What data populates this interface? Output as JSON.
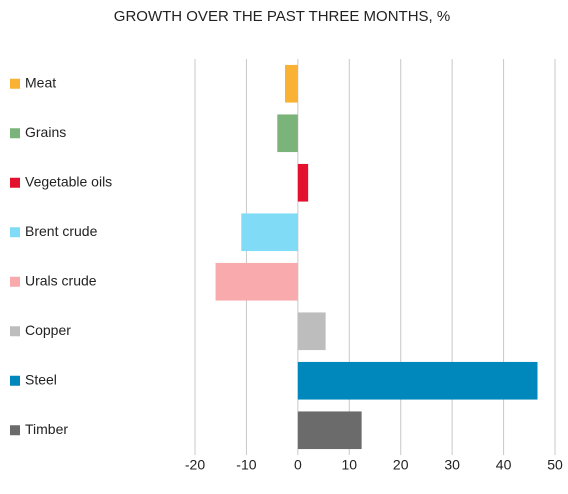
{
  "chart_data": {
    "type": "bar",
    "orientation": "horizontal",
    "title": "GROWTH OVER THE PAST THREE MONTHS, %",
    "categories": [
      "Meat",
      "Grains",
      "Vegetable oils",
      "Brent crude",
      "Urals crude",
      "Copper",
      "Steel",
      "Timber"
    ],
    "values": [
      -2.5,
      -4,
      2,
      -11,
      -16,
      5.4,
      46.6,
      12.4
    ],
    "colors": [
      "#f9b234",
      "#7ab47a",
      "#e3112d",
      "#80dbf6",
      "#f8aaad",
      "#bdbdbd",
      "#0087bb",
      "#6b6b6b"
    ],
    "xlim": [
      -20,
      50
    ],
    "xticks": [
      -20,
      -10,
      0,
      10,
      20,
      30,
      40,
      50
    ],
    "grid": true
  }
}
